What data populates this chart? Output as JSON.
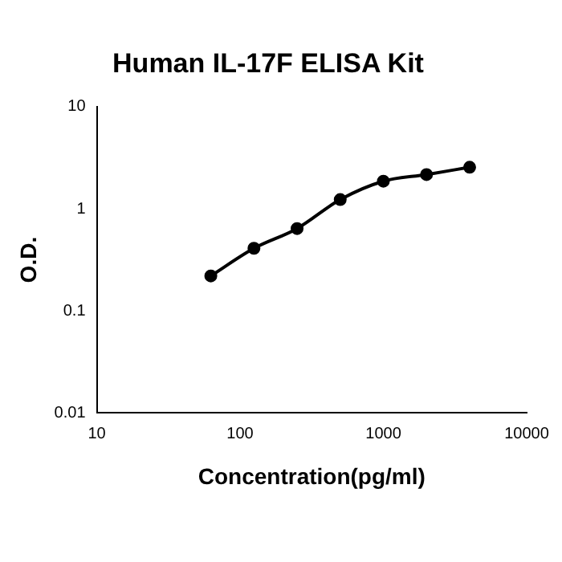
{
  "chart_data": {
    "type": "line",
    "title": "Human IL-17F ELISA Kit",
    "xlabel": "Concentration(pg/ml)",
    "ylabel": "O.D.",
    "x": [
      62.5,
      125,
      250,
      500,
      1000,
      2000,
      4000
    ],
    "series": [
      {
        "color": "#000000",
        "values": [
          0.22,
          0.41,
          0.64,
          1.23,
          1.86,
          2.16,
          2.55
        ]
      }
    ],
    "log": "xy",
    "xlim": [
      10,
      10000
    ],
    "xticks": [
      10,
      100,
      1000,
      10000
    ],
    "ylim": [
      0.01,
      10
    ],
    "yticks": [
      0.01,
      0.1,
      1,
      10
    ],
    "grid": false,
    "legend": false,
    "marker": "circle",
    "line_style": "solid"
  }
}
